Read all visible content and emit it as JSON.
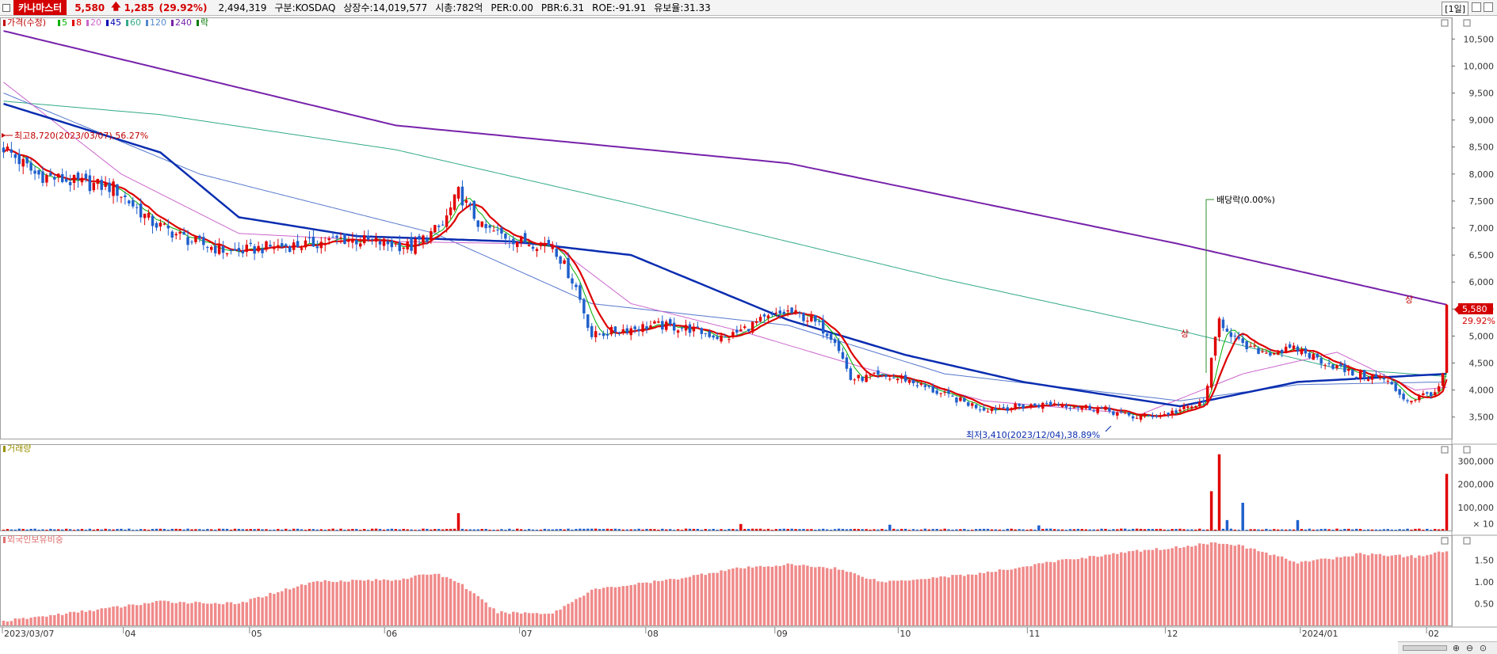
{
  "header": {
    "stock_name": "카나마스터",
    "price": "5,580",
    "change": "1,285",
    "change_pct": "(29.92%)",
    "volume": "2,494,319",
    "market": "구분:KOSDAQ",
    "shares": "상장수:14,019,577",
    "market_cap": "시총:782억",
    "per": "PER:0.00",
    "pbr": "PBR:6.31",
    "roe": "ROE:-91.91",
    "float": "유보율:31.33",
    "period": "[1일]"
  },
  "legend": {
    "price_label": "가격(수정)",
    "ma": [
      {
        "label": "5",
        "color": "#00b000"
      },
      {
        "label": "8",
        "color": "#e00000"
      },
      {
        "label": "20",
        "color": "#cc66cc"
      },
      {
        "label": "45",
        "color": "#0000b0"
      },
      {
        "label": "60",
        "color": "#33aa88"
      },
      {
        "label": "120",
        "color": "#5588cc"
      },
      {
        "label": "240",
        "color": "#7722aa"
      }
    ],
    "ex_label": "락"
  },
  "annotations": {
    "high": "최고8,720(2023/03/07),56.27%",
    "low": "최저3,410(2023/12/04),38.89%",
    "dividend": "배당락(0.00%)",
    "limit_up_1": "상",
    "limit_up_2": "상",
    "last_price": "5,580",
    "last_pct": "29.92%"
  },
  "panels": {
    "volume_title": "거래량",
    "foreign_title": "외국인보유비중"
  },
  "colors": {
    "up": "#e00000",
    "down": "#1f5fcc",
    "ma240": "#7722aa",
    "ma120": "#33aa88",
    "ma60": "#5577cc",
    "ma45": "#0a2db0",
    "ma20": "#cc66cc",
    "ma8": "#dd0000",
    "ma5": "#00b000",
    "foreign_bar": "#f08a8a"
  },
  "chart_data": {
    "type": "candlestick",
    "x_labels": [
      "2023/03/07",
      "04",
      "05",
      "06",
      "07",
      "08",
      "09",
      "10",
      "11",
      "12",
      "2024/01",
      "02"
    ],
    "price_axis": {
      "ticks": [
        "10,500",
        "10,000",
        "9,500",
        "9,000",
        "8,500",
        "8,000",
        "7,500",
        "7,000",
        "6,500",
        "6,000",
        "5,500",
        "5,000",
        "4,500",
        "4,000",
        "3,500"
      ],
      "range": [
        3100,
        10900
      ]
    },
    "volume_axis": {
      "ticks": [
        "300,000",
        "200,000",
        "100,000",
        "× 10"
      ],
      "range": [
        0,
        360000
      ]
    },
    "foreign_axis": {
      "ticks": [
        "1.50",
        "1.00",
        "0.50"
      ],
      "range": [
        0,
        2.0
      ]
    },
    "price_anchors": [
      [
        0,
        8500
      ],
      [
        8,
        8000
      ],
      [
        18,
        7850
      ],
      [
        28,
        7750
      ],
      [
        38,
        7100
      ],
      [
        48,
        6750
      ],
      [
        58,
        6550
      ],
      [
        68,
        6650
      ],
      [
        78,
        6700
      ],
      [
        86,
        6800
      ],
      [
        94,
        6750
      ],
      [
        104,
        6650
      ],
      [
        112,
        7050
      ],
      [
        116,
        7650
      ],
      [
        122,
        7000
      ],
      [
        132,
        6750
      ],
      [
        140,
        6700
      ],
      [
        146,
        5900
      ],
      [
        150,
        5000
      ],
      [
        156,
        5100
      ],
      [
        166,
        5200
      ],
      [
        174,
        5150
      ],
      [
        184,
        4950
      ],
      [
        192,
        5250
      ],
      [
        200,
        5450
      ],
      [
        206,
        5300
      ],
      [
        212,
        4950
      ],
      [
        216,
        4200
      ],
      [
        222,
        4250
      ],
      [
        230,
        4200
      ],
      [
        240,
        3900
      ],
      [
        250,
        3650
      ],
      [
        260,
        3700
      ],
      [
        268,
        3750
      ],
      [
        280,
        3650
      ],
      [
        288,
        3500
      ],
      [
        296,
        3550
      ],
      [
        306,
        3750
      ],
      [
        310,
        5300
      ],
      [
        316,
        4800
      ],
      [
        322,
        4700
      ],
      [
        330,
        4750
      ],
      [
        336,
        4550
      ],
      [
        344,
        4300
      ],
      [
        352,
        4200
      ],
      [
        358,
        3800
      ],
      [
        366,
        4000
      ],
      [
        367,
        4295
      ],
      [
        368,
        5580
      ]
    ],
    "ma240_anchors": [
      [
        0,
        10650
      ],
      [
        100,
        8900
      ],
      [
        200,
        8200
      ],
      [
        300,
        6700
      ],
      [
        368,
        5580
      ]
    ],
    "ma120_anchors": [
      [
        0,
        9350
      ],
      [
        40,
        9100
      ],
      [
        100,
        8450
      ],
      [
        160,
        7450
      ],
      [
        240,
        6050
      ],
      [
        300,
        5100
      ],
      [
        340,
        4400
      ],
      [
        368,
        4250
      ]
    ],
    "ma60_anchors": [
      [
        0,
        9500
      ],
      [
        50,
        8000
      ],
      [
        110,
        6900
      ],
      [
        150,
        5600
      ],
      [
        200,
        5200
      ],
      [
        240,
        4300
      ],
      [
        300,
        3800
      ],
      [
        330,
        4100
      ],
      [
        368,
        4150
      ]
    ],
    "ma45_anchors": [
      [
        0,
        9300
      ],
      [
        40,
        8400
      ],
      [
        60,
        7200
      ],
      [
        90,
        6850
      ],
      [
        130,
        6750
      ],
      [
        160,
        6500
      ],
      [
        200,
        5300
      ],
      [
        230,
        4650
      ],
      [
        260,
        4150
      ],
      [
        300,
        3700
      ],
      [
        330,
        4150
      ],
      [
        368,
        4300
      ]
    ],
    "ma20_anchors": [
      [
        0,
        9700
      ],
      [
        30,
        8000
      ],
      [
        60,
        6900
      ],
      [
        100,
        6750
      ],
      [
        140,
        6700
      ],
      [
        160,
        5600
      ],
      [
        190,
        5050
      ],
      [
        220,
        4400
      ],
      [
        250,
        3800
      ],
      [
        290,
        3550
      ],
      [
        316,
        4300
      ],
      [
        340,
        4700
      ],
      [
        360,
        4000
      ],
      [
        368,
        4050
      ]
    ],
    "volume_spikes": [
      [
        116,
        75000
      ],
      [
        188,
        28000
      ],
      [
        226,
        25000
      ],
      [
        264,
        22000
      ],
      [
        308,
        170000
      ],
      [
        310,
        330000
      ],
      [
        312,
        45000
      ],
      [
        316,
        120000
      ],
      [
        330,
        45000
      ],
      [
        368,
        245000
      ]
    ],
    "foreign_anchors": [
      [
        0,
        0.1
      ],
      [
        20,
        0.32
      ],
      [
        40,
        0.55
      ],
      [
        60,
        0.5
      ],
      [
        70,
        0.78
      ],
      [
        80,
        1.02
      ],
      [
        100,
        1.05
      ],
      [
        110,
        1.2
      ],
      [
        116,
        1.0
      ],
      [
        126,
        0.3
      ],
      [
        140,
        0.28
      ],
      [
        150,
        0.82
      ],
      [
        170,
        1.05
      ],
      [
        186,
        1.3
      ],
      [
        200,
        1.4
      ],
      [
        212,
        1.32
      ],
      [
        224,
        1.0
      ],
      [
        250,
        1.2
      ],
      [
        270,
        1.5
      ],
      [
        290,
        1.72
      ],
      [
        300,
        1.8
      ],
      [
        306,
        1.88
      ],
      [
        312,
        1.9
      ],
      [
        320,
        1.72
      ],
      [
        330,
        1.45
      ],
      [
        340,
        1.55
      ],
      [
        346,
        1.65
      ],
      [
        360,
        1.58
      ],
      [
        368,
        1.7
      ]
    ]
  }
}
